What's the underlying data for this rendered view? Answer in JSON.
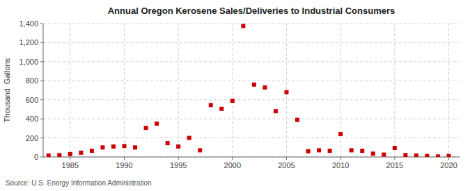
{
  "chart_data": {
    "type": "scatter",
    "title": "Annual Oregon Kerosene Sales/Deliveries to Industrial Consumers",
    "ylabel": "Thousand  Gallons",
    "annotation": "Source: U.S. Energy Information Administration",
    "x": [
      1983,
      1984,
      1985,
      1986,
      1987,
      1988,
      1989,
      1990,
      1991,
      1992,
      1993,
      1994,
      1995,
      1996,
      1997,
      1998,
      1999,
      2000,
      2001,
      2002,
      2003,
      2004,
      2005,
      2006,
      2007,
      2008,
      2009,
      2010,
      2011,
      2012,
      2013,
      2014,
      2015,
      2016,
      2017,
      2018,
      2019,
      2020
    ],
    "values": [
      15,
      20,
      30,
      45,
      65,
      100,
      110,
      115,
      100,
      305,
      350,
      145,
      110,
      200,
      70,
      545,
      505,
      590,
      1375,
      760,
      730,
      480,
      680,
      390,
      60,
      70,
      65,
      240,
      70,
      65,
      35,
      25,
      95,
      20,
      15,
      10,
      5,
      10
    ],
    "color": "#cc0000",
    "marker": "square",
    "xlim": [
      1982.5,
      2021
    ],
    "ylim": [
      0,
      1400
    ],
    "xticks": [
      1985,
      1990,
      1995,
      2000,
      2005,
      2010,
      2015,
      2020
    ],
    "yticks": [
      0,
      200,
      400,
      600,
      800,
      {
        "value": 1000,
        "label": "1,000"
      },
      {
        "value": 1200,
        "label": "1,200"
      },
      {
        "value": 1400,
        "label": "1,400"
      }
    ],
    "grid": true
  }
}
